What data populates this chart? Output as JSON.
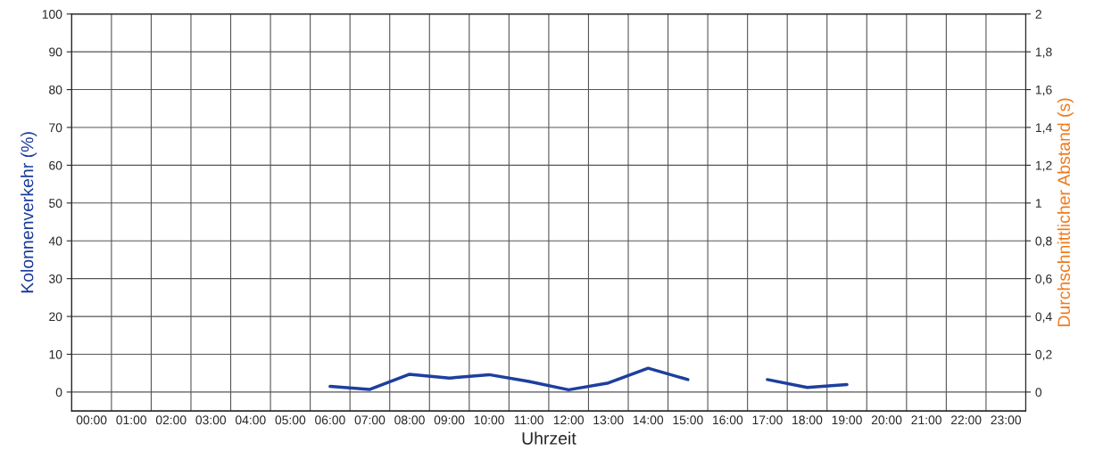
{
  "chart_data": {
    "type": "line",
    "categories": [
      "00:00",
      "01:00",
      "02:00",
      "03:00",
      "04:00",
      "05:00",
      "06:00",
      "07:00",
      "08:00",
      "09:00",
      "10:00",
      "11:00",
      "12:00",
      "13:00",
      "14:00",
      "15:00",
      "16:00",
      "17:00",
      "18:00",
      "19:00",
      "20:00",
      "21:00",
      "22:00",
      "23:00"
    ],
    "series": [
      {
        "color": "#1d3f9e",
        "values": [
          null,
          null,
          null,
          null,
          null,
          null,
          1.5,
          0.7,
          4.7,
          3.7,
          4.6,
          2.8,
          0.6,
          2.4,
          6.3,
          3.3,
          null,
          3.3,
          1.2,
          2.0,
          null,
          null,
          null,
          null
        ]
      }
    ],
    "xlabel": "Uhrzeit",
    "ylabel": "Kolonnenverkehr (%)",
    "y2label": "Durchschnittlicher Abstand (s)",
    "ylim": [
      -5,
      100
    ],
    "yticks": [
      0,
      10,
      20,
      30,
      40,
      50,
      60,
      70,
      80,
      90,
      100
    ],
    "y2lim": [
      -0.1,
      2
    ],
    "y2ticks": [
      0,
      {
        "value": 0.2,
        "label": "0,2"
      },
      {
        "value": 0.4,
        "label": "0,4"
      },
      {
        "value": 0.6,
        "label": "0,6"
      },
      {
        "value": 0.8,
        "label": "0,8"
      },
      1,
      {
        "value": 1.2,
        "label": "1,2"
      },
      {
        "value": 1.4,
        "label": "1,4"
      },
      {
        "value": 1.6,
        "label": "1,6"
      },
      {
        "value": 1.8,
        "label": "1,8"
      },
      2
    ],
    "grid": true,
    "line_style": "solid",
    "marker": "none"
  }
}
